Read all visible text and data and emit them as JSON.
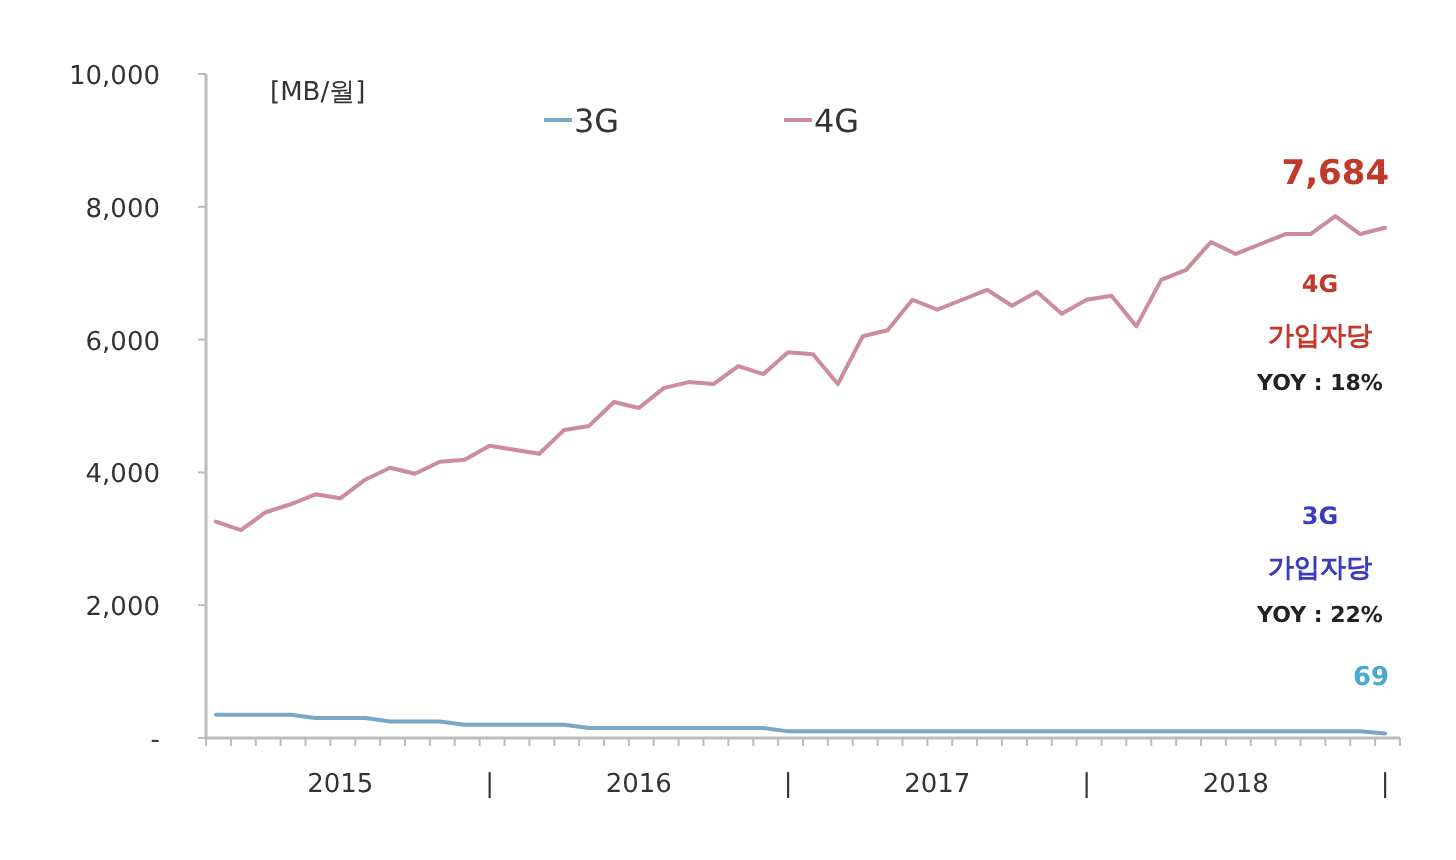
{
  "chart_data": {
    "type": "line",
    "categories": [
      null,
      null,
      null,
      null,
      null,
      "2015",
      null,
      null,
      null,
      null,
      null,
      "|",
      null,
      null,
      null,
      null,
      null,
      "2016",
      null,
      null,
      null,
      null,
      null,
      "|",
      null,
      null,
      null,
      null,
      null,
      "2017",
      null,
      null,
      null,
      null,
      null,
      "|",
      null,
      null,
      null,
      null,
      null,
      "2018",
      null,
      null,
      null,
      null,
      null,
      "|"
    ],
    "series": [
      {
        "name": "3G",
        "color": "#7aa6c8",
        "values": [
          350,
          350,
          350,
          350,
          300,
          300,
          300,
          250,
          250,
          250,
          200,
          200,
          200,
          200,
          200,
          150,
          150,
          150,
          150,
          150,
          150,
          150,
          150,
          100,
          100,
          100,
          100,
          100,
          100,
          100,
          100,
          100,
          100,
          100,
          100,
          100,
          100,
          100,
          100,
          100,
          100,
          100,
          100,
          100,
          100,
          100,
          100,
          69
        ],
        "value_labels": [
          null,
          null,
          null,
          null,
          null,
          null,
          null,
          null,
          null,
          null,
          null,
          null,
          null,
          null,
          null,
          null,
          null,
          null,
          null,
          null,
          null,
          null,
          null,
          null,
          null,
          null,
          null,
          null,
          null,
          null,
          null,
          null,
          null,
          null,
          null,
          null,
          null,
          null,
          null,
          null,
          null,
          null,
          null,
          null,
          null,
          null,
          null,
          "69"
        ]
      },
      {
        "name": "4G",
        "color": "#cc8c9c",
        "values": [
          3260,
          3130,
          3400,
          3520,
          3670,
          3610,
          3890,
          4070,
          3980,
          4160,
          4190,
          4400,
          4340,
          4280,
          4640,
          4700,
          5060,
          4970,
          5270,
          5360,
          5330,
          5600,
          5480,
          5810,
          5780,
          5330,
          6050,
          6140,
          6600,
          6450,
          6600,
          6750,
          6510,
          6720,
          6390,
          6600,
          6660,
          6200,
          6900,
          7050,
          7470,
          7290,
          7440,
          7590,
          7590,
          7860,
          7590,
          7684
        ],
        "value_labels": [
          null,
          null,
          null,
          null,
          null,
          null,
          null,
          null,
          null,
          null,
          null,
          null,
          null,
          null,
          null,
          null,
          null,
          null,
          null,
          null,
          null,
          null,
          null,
          null,
          null,
          null,
          null,
          null,
          null,
          null,
          null,
          null,
          null,
          null,
          null,
          null,
          null,
          null,
          null,
          null,
          null,
          null,
          null,
          null,
          null,
          null,
          null,
          "7,684"
        ]
      }
    ],
    "ylim": [
      0,
      10000
    ],
    "yticks": [
      {
        "value": 0,
        "label": "-"
      },
      {
        "value": 2000,
        "label": "2,000"
      },
      {
        "value": 4000,
        "label": "4,000"
      },
      {
        "value": 6000,
        "label": "6,000"
      },
      {
        "value": 8000,
        "label": "8,000"
      },
      {
        "value": 10000,
        "label": "10,000"
      }
    ],
    "grid": false,
    "legend": "top",
    "marker": "none",
    "line_style": "solid",
    "annotations": [
      "[MB/월]",
      "4G",
      "가입자당",
      "YOY : 18%",
      "3G",
      "가입자당",
      "YOY : 22%"
    ]
  }
}
